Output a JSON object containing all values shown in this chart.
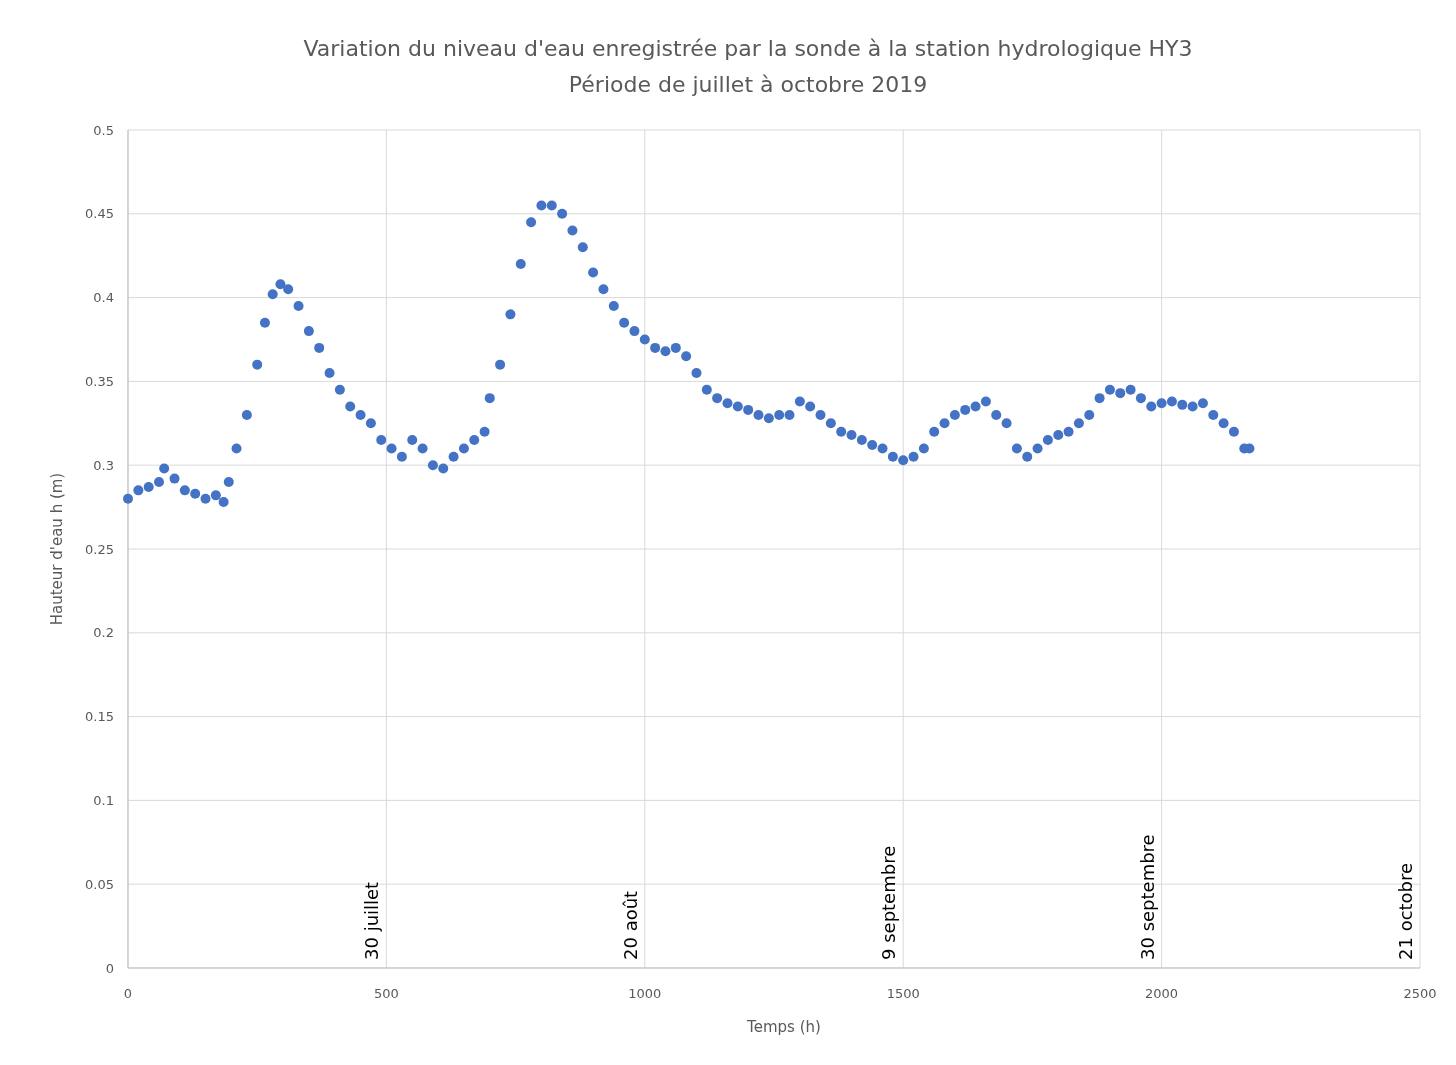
{
  "chart_data": {
    "type": "scatter",
    "title": "Variation du niveau d'eau enregistrée par la sonde à la station hydrologique HY3",
    "subtitle": "Période de juillet à octobre 2019",
    "xlabel": "Temps (h)",
    "ylabel": "Hauteur d'eau h (m)",
    "xlim": [
      0,
      2500
    ],
    "xticks": [
      0,
      500,
      1000,
      1500,
      2000,
      2500
    ],
    "ylim": [
      0,
      0.5
    ],
    "yticks": [
      0,
      0.05,
      0.1,
      0.15,
      0.2,
      0.25,
      0.3,
      0.35,
      0.4,
      0.45,
      0.5
    ],
    "grid": true,
    "marker": "circle",
    "annotations": [
      "30 juillet",
      "20 août",
      "9 septembre",
      "30 septembre",
      "21 octobre"
    ],
    "series": [
      {
        "color": "#4472c4",
        "x": [
          0,
          20,
          40,
          60,
          70,
          90,
          110,
          130,
          150,
          170,
          185,
          195,
          210,
          230,
          250,
          265,
          280,
          295,
          310,
          330,
          350,
          370,
          390,
          410,
          430,
          450,
          470,
          490,
          510,
          530,
          550,
          570,
          590,
          610,
          630,
          650,
          670,
          690,
          700,
          720,
          740,
          760,
          780,
          800,
          820,
          840,
          860,
          880,
          900,
          920,
          940,
          960,
          980,
          1000,
          1020,
          1040,
          1060,
          1080,
          1100,
          1120,
          1140,
          1160,
          1180,
          1200,
          1220,
          1240,
          1260,
          1280,
          1300,
          1320,
          1340,
          1360,
          1380,
          1400,
          1420,
          1440,
          1460,
          1480,
          1500,
          1520,
          1540,
          1560,
          1580,
          1600,
          1620,
          1640,
          1660,
          1680,
          1700,
          1720,
          1740,
          1760,
          1780,
          1800,
          1820,
          1840,
          1860,
          1880,
          1900,
          1920,
          1940,
          1960,
          1980,
          2000,
          2020,
          2040,
          2060,
          2080,
          2100,
          2120,
          2140,
          2160,
          2170
        ],
        "values": [
          0.28,
          0.285,
          0.287,
          0.29,
          0.298,
          0.292,
          0.285,
          0.283,
          0.28,
          0.282,
          0.278,
          0.29,
          0.31,
          0.33,
          0.36,
          0.385,
          0.402,
          0.408,
          0.405,
          0.395,
          0.38,
          0.37,
          0.355,
          0.345,
          0.335,
          0.33,
          0.325,
          0.315,
          0.31,
          0.305,
          0.315,
          0.31,
          0.3,
          0.298,
          0.305,
          0.31,
          0.315,
          0.32,
          0.34,
          0.36,
          0.39,
          0.42,
          0.445,
          0.455,
          0.455,
          0.45,
          0.44,
          0.43,
          0.415,
          0.405,
          0.395,
          0.385,
          0.38,
          0.375,
          0.37,
          0.368,
          0.37,
          0.365,
          0.355,
          0.345,
          0.34,
          0.337,
          0.335,
          0.333,
          0.33,
          0.328,
          0.33,
          0.33,
          0.338,
          0.335,
          0.33,
          0.325,
          0.32,
          0.318,
          0.315,
          0.312,
          0.31,
          0.305,
          0.303,
          0.305,
          0.31,
          0.32,
          0.325,
          0.33,
          0.333,
          0.335,
          0.338,
          0.33,
          0.325,
          0.31,
          0.305,
          0.31,
          0.315,
          0.318,
          0.32,
          0.325,
          0.33,
          0.34,
          0.345,
          0.343,
          0.345,
          0.34,
          0.335,
          0.337,
          0.338,
          0.336,
          0.335,
          0.337,
          0.33,
          0.325,
          0.32,
          0.31,
          0.31
        ]
      }
    ]
  }
}
